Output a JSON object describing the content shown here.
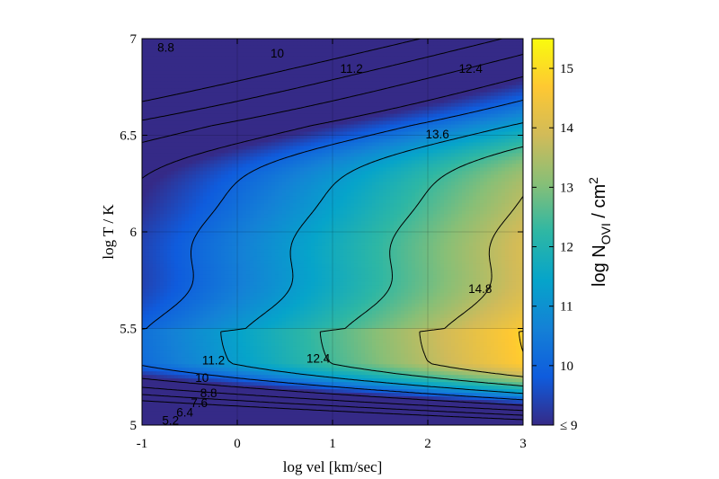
{
  "chart_data": {
    "type": "heatmap",
    "subtype": "filled-colormap-with-contours",
    "xlabel": "log vel [km/sec]",
    "ylabel": "log T / K",
    "colorbar_label": {
      "base": "log N",
      "subscript": "OVI",
      "suffix": " / cm",
      "superscript": "2"
    },
    "xlim": [
      -1,
      3
    ],
    "ylim": [
      5,
      7
    ],
    "x_ticks": [
      -1,
      0,
      1,
      2,
      3
    ],
    "x_tick_labels": [
      "-1",
      "0",
      "1",
      "2",
      "3"
    ],
    "y_ticks": [
      5,
      5.5,
      6,
      6.5,
      7
    ],
    "y_tick_labels": [
      "5",
      "5.5",
      "6",
      "6.5",
      "7"
    ],
    "colorbar_range": [
      9,
      15.5
    ],
    "colorbar_ticks": [
      9,
      10,
      11,
      12,
      13,
      14,
      15
    ],
    "colorbar_tick_labels": [
      "≤ 9",
      "10",
      "11",
      "12",
      "13",
      "14",
      "15"
    ],
    "colormap": "parula",
    "grid": true,
    "contour_levels": [
      5.2,
      6.4,
      7.6,
      8.8,
      10,
      11.2,
      12.4,
      13.6,
      14.8
    ],
    "contour_labels": [
      {
        "text": "8.8",
        "x": -0.75,
        "y": 6.95
      },
      {
        "text": "10",
        "x": 0.42,
        "y": 6.92
      },
      {
        "text": "11.2",
        "x": 1.2,
        "y": 6.84
      },
      {
        "text": "12.4",
        "x": 2.45,
        "y": 6.84
      },
      {
        "text": "13.6",
        "x": 2.1,
        "y": 6.5
      },
      {
        "text": "14.8",
        "x": 2.55,
        "y": 5.7
      },
      {
        "text": "11.2",
        "x": -0.25,
        "y": 5.33
      },
      {
        "text": "12.4",
        "x": 0.85,
        "y": 5.34
      },
      {
        "text": "10",
        "x": -0.37,
        "y": 5.24
      },
      {
        "text": "8.8",
        "x": -0.3,
        "y": 5.16
      },
      {
        "text": "7.6",
        "x": -0.4,
        "y": 5.11
      },
      {
        "text": "6.4",
        "x": -0.55,
        "y": 5.06
      },
      {
        "text": "5.2",
        "x": -0.7,
        "y": 5.02
      }
    ]
  }
}
